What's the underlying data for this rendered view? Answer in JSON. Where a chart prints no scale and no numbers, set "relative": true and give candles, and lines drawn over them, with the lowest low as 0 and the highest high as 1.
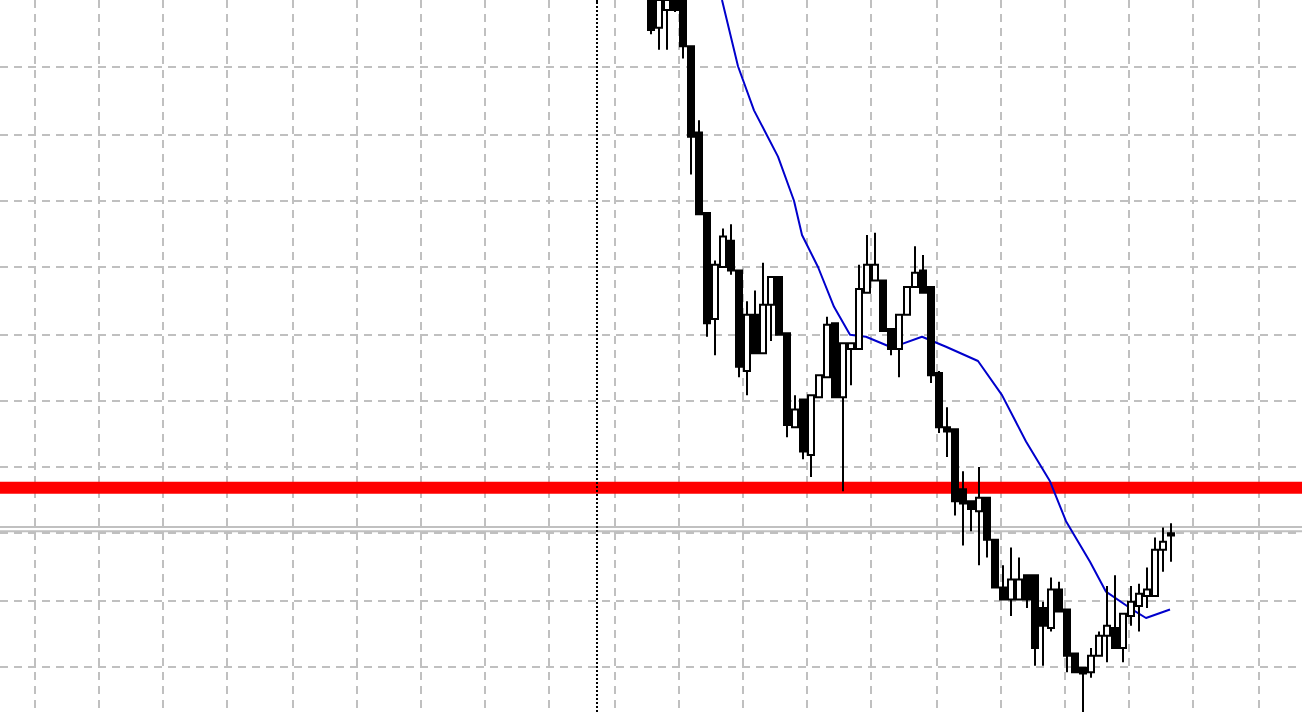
{
  "chart_data": {
    "type": "candlestick",
    "relative": true,
    "grid": true,
    "legend": false,
    "categories": [
      null,
      null,
      null,
      null,
      null,
      null,
      null,
      null,
      null,
      null,
      null,
      null,
      null,
      null,
      null,
      null,
      null,
      null,
      null,
      null,
      null,
      null,
      null,
      null,
      null,
      null,
      null,
      null,
      null,
      null,
      null,
      null,
      null,
      null,
      null,
      null,
      null,
      null,
      null,
      null,
      null,
      null,
      null,
      null,
      null,
      null,
      null,
      null,
      null,
      null,
      null,
      null,
      null,
      null,
      null,
      null,
      null,
      null,
      null,
      null,
      null,
      null,
      null,
      null,
      null,
      null
    ],
    "ohlc": [
      [
        1,
        1,
        0.952,
        0.958
      ],
      [
        0.961,
        1,
        0.93,
        1
      ],
      [
        0.986,
        1,
        0.93,
        1
      ],
      [
        1,
        1,
        0.983,
        0.986
      ],
      [
        1,
        1,
        0.918,
        0.935
      ],
      [
        0.935,
        0.935,
        0.755,
        0.808
      ],
      [
        0.814,
        0.831,
        0.699,
        0.699
      ],
      [
        0.701,
        0.701,
        0.527,
        0.546
      ],
      [
        0.552,
        0.634,
        0.501,
        0.628
      ],
      [
        0.625,
        0.679,
        0.625,
        0.668
      ],
      [
        0.662,
        0.685,
        0.614,
        0.62
      ],
      [
        0.62,
        0.62,
        0.47,
        0.485
      ],
      [
        0.479,
        0.577,
        0.445,
        0.558
      ],
      [
        0.558,
        0.592,
        0.504,
        0.504
      ],
      [
        0.504,
        0.631,
        0.504,
        0.572
      ],
      [
        0.572,
        0.611,
        0.521,
        0.611
      ],
      [
        0.611,
        0.611,
        0.53,
        0.53
      ],
      [
        0.532,
        0.532,
        0.386,
        0.403
      ],
      [
        0.4,
        0.445,
        0.4,
        0.425
      ],
      [
        0.439,
        0.439,
        0.355,
        0.366
      ],
      [
        0.361,
        0.445,
        0.33,
        0.445
      ],
      [
        0.442,
        0.473,
        0.442,
        0.473
      ],
      [
        0.47,
        0.555,
        0.47,
        0.544
      ],
      [
        0.546,
        0.546,
        0.442,
        0.442
      ],
      [
        0.442,
        0.518,
        0.31,
        0.518
      ],
      [
        0.51,
        0.518,
        0.459,
        0.518
      ],
      [
        0.51,
        0.628,
        0.51,
        0.594
      ],
      [
        0.589,
        0.67,
        0.589,
        0.628
      ],
      [
        0.606,
        0.673,
        0.606,
        0.628
      ],
      [
        0.606,
        0.606,
        0.535,
        0.535
      ],
      [
        0.538,
        0.538,
        0.501,
        0.51
      ],
      [
        0.51,
        0.558,
        0.47,
        0.558
      ],
      [
        0.558,
        0.597,
        0.558,
        0.597
      ],
      [
        0.597,
        0.654,
        0.597,
        0.617
      ],
      [
        0.62,
        0.642,
        0.589,
        0.589
      ],
      [
        0.597,
        0.597,
        0.462,
        0.473
      ],
      [
        0.476,
        0.479,
        0.392,
        0.4
      ],
      [
        0.4,
        0.428,
        0.358,
        0.394
      ],
      [
        0.397,
        0.397,
        0.276,
        0.296
      ],
      [
        0.313,
        0.338,
        0.234,
        0.293
      ],
      [
        0.296,
        0.296,
        0.254,
        0.285
      ],
      [
        0.282,
        0.344,
        0.206,
        0.301
      ],
      [
        0.301,
        0.301,
        0.217,
        0.242
      ],
      [
        0.242,
        0.242,
        0.175,
        0.175
      ],
      [
        0.175,
        0.206,
        0.158,
        0.158
      ],
      [
        0.158,
        0.231,
        0.135,
        0.186
      ],
      [
        0.158,
        0.217,
        0.158,
        0.186
      ],
      [
        0.192,
        0.192,
        0.146,
        0.158
      ],
      [
        0.192,
        0.192,
        0.065,
        0.09
      ],
      [
        0.146,
        0.155,
        0.065,
        0.121
      ],
      [
        0.118,
        0.189,
        0.113,
        0.172
      ],
      [
        0.172,
        0.183,
        0.141,
        0.141
      ],
      [
        0.144,
        0.144,
        0.056,
        0.079
      ],
      [
        0.082,
        0.082,
        0.056,
        0.056
      ],
      [
        0.062,
        0.062,
        0,
        0.054
      ],
      [
        0.056,
        0.09,
        0.048,
        0.079
      ],
      [
        0.079,
        0.113,
        0.079,
        0.107
      ],
      [
        0.107,
        0.177,
        0.07,
        0.121
      ],
      [
        0.118,
        0.192,
        0.09,
        0.09
      ],
      [
        0.09,
        0.138,
        0.07,
        0.138
      ],
      [
        0.135,
        0.177,
        0.121,
        0.155
      ],
      [
        0.149,
        0.18,
        0.113,
        0.166
      ],
      [
        0.163,
        0.203,
        0.146,
        0.172
      ],
      [
        0.163,
        0.245,
        0.163,
        0.228
      ],
      [
        0.228,
        0.259,
        0.197,
        0.239
      ],
      [
        0.251,
        0.265,
        0.211,
        0.248
      ]
    ],
    "series": [
      {
        "type": "line",
        "color": "#0000cc",
        "values": [
          null,
          null,
          null,
          null,
          null,
          null,
          null,
          null,
          null,
          1,
          null,
          0.907,
          null,
          0.845,
          null,
          null,
          0.78,
          null,
          0.718,
          0.67,
          null,
          0.625,
          null,
          0.569,
          null,
          0.53,
          null,
          0.527,
          null,
          null,
          0.513,
          0.515,
          null,
          null,
          0.527,
          null,
          null,
          0.513,
          null,
          null,
          null,
          0.493,
          null,
          null,
          0.445,
          null,
          null,
          0.38,
          null,
          null,
          0.324,
          null,
          0.268,
          null,
          null,
          0.211,
          null,
          0.169,
          null,
          null,
          0.146,
          null,
          0.132,
          null,
          null,
          0.144
        ]
      }
    ],
    "ref_lines": [
      {
        "axis": "y",
        "value": 0.315,
        "color": "#ff0000"
      },
      {
        "axis": "y",
        "value": 0.26,
        "color": "#c0c0c0"
      },
      {
        "axis": "y",
        "value": 0.254,
        "color": "#c0c0c0"
      }
    ]
  }
}
